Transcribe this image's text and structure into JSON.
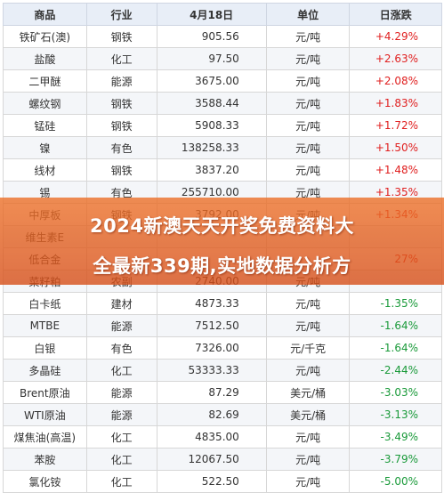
{
  "headers": [
    "商品",
    "行业",
    "4月18日",
    "单位",
    "日涨跌"
  ],
  "rows": [
    {
      "name": "铁矿石(澳)",
      "industry": "钢铁",
      "price": "905.56",
      "unit": "元/吨",
      "change": "+4.29%",
      "dir": "up"
    },
    {
      "name": "盐酸",
      "industry": "化工",
      "price": "97.50",
      "unit": "元/吨",
      "change": "+2.63%",
      "dir": "up"
    },
    {
      "name": "二甲醚",
      "industry": "能源",
      "price": "3675.00",
      "unit": "元/吨",
      "change": "+2.08%",
      "dir": "up"
    },
    {
      "name": "螺纹钢",
      "industry": "钢铁",
      "price": "3588.44",
      "unit": "元/吨",
      "change": "+1.83%",
      "dir": "up"
    },
    {
      "name": "锰硅",
      "industry": "钢铁",
      "price": "5908.33",
      "unit": "元/吨",
      "change": "+1.72%",
      "dir": "up"
    },
    {
      "name": "镍",
      "industry": "有色",
      "price": "138258.33",
      "unit": "元/吨",
      "change": "+1.50%",
      "dir": "up"
    },
    {
      "name": "线材",
      "industry": "钢铁",
      "price": "3837.20",
      "unit": "元/吨",
      "change": "+1.48%",
      "dir": "up"
    },
    {
      "name": "锡",
      "industry": "有色",
      "price": "255710.00",
      "unit": "元/吨",
      "change": "+1.35%",
      "dir": "up"
    },
    {
      "name": "中厚板",
      "industry": "钢铁",
      "price": "3792.00",
      "unit": "元/吨",
      "change": "+1.34%",
      "dir": "up"
    },
    {
      "name": "维生素E",
      "industry": "",
      "price": "",
      "unit": "",
      "change": "",
      "dir": "up"
    },
    {
      "name": "低合金",
      "industry": "",
      "price": "",
      "unit": "",
      "change": "27%",
      "dir": "up"
    },
    {
      "name": "菜籽粕",
      "industry": "农副",
      "price": "2740.00",
      "unit": "元/吨",
      "change": "",
      "dir": "up"
    },
    {
      "name": "白卡纸",
      "industry": "建材",
      "price": "4873.33",
      "unit": "元/吨",
      "change": "-1.35%",
      "dir": "down"
    },
    {
      "name": "MTBE",
      "industry": "能源",
      "price": "7512.50",
      "unit": "元/吨",
      "change": "-1.64%",
      "dir": "down"
    },
    {
      "name": "白银",
      "industry": "有色",
      "price": "7326.00",
      "unit": "元/千克",
      "change": "-1.64%",
      "dir": "down"
    },
    {
      "name": "多晶硅",
      "industry": "化工",
      "price": "53333.33",
      "unit": "元/吨",
      "change": "-2.44%",
      "dir": "down"
    },
    {
      "name": "Brent原油",
      "industry": "能源",
      "price": "87.29",
      "unit": "美元/桶",
      "change": "-3.03%",
      "dir": "down"
    },
    {
      "name": "WTI原油",
      "industry": "能源",
      "price": "82.69",
      "unit": "美元/桶",
      "change": "-3.13%",
      "dir": "down"
    },
    {
      "name": "煤焦油(高温)",
      "industry": "化工",
      "price": "4835.00",
      "unit": "元/吨",
      "change": "-3.49%",
      "dir": "down"
    },
    {
      "name": "苯胺",
      "industry": "化工",
      "price": "12067.50",
      "unit": "元/吨",
      "change": "-3.79%",
      "dir": "down"
    },
    {
      "name": "氯化铵",
      "industry": "化工",
      "price": "522.50",
      "unit": "元/吨",
      "change": "-5.00%",
      "dir": "down"
    }
  ],
  "banner": {
    "line1": "2024新澳天天开奖免费资料大",
    "line2": "全最新339期,实地数据分析方"
  },
  "colors": {
    "up": "#e02020",
    "down": "#1a9a3a",
    "banner": "#e06a2a"
  }
}
